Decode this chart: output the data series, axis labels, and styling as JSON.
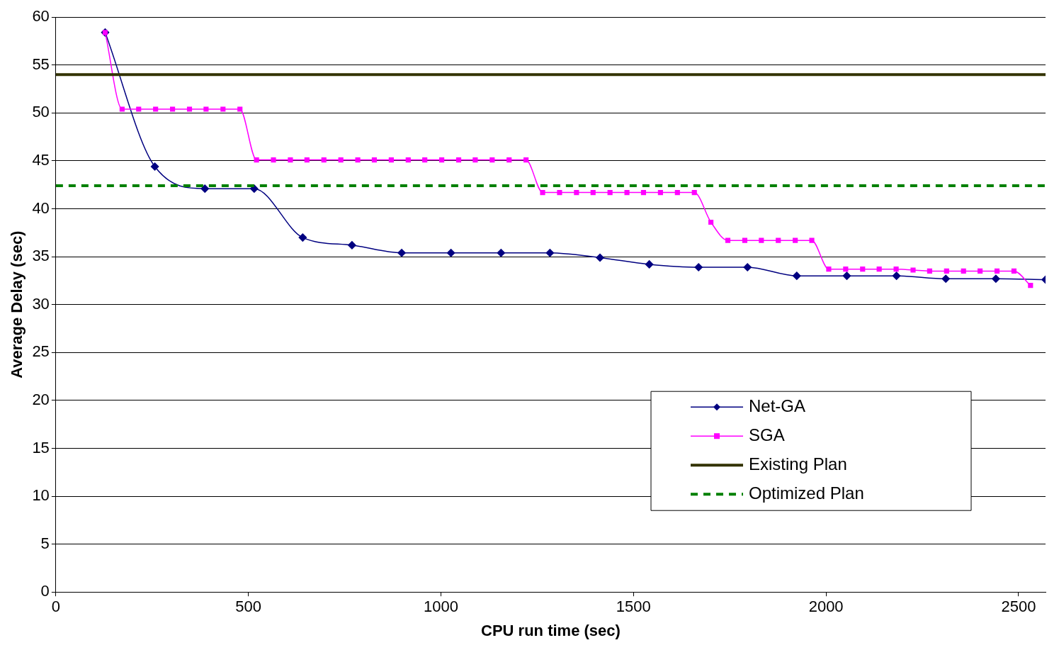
{
  "chart_data": {
    "type": "line",
    "xlabel": "CPU run time (sec)",
    "ylabel": "Average Delay (sec)",
    "xlim": [
      0,
      2570
    ],
    "xticks": [
      0,
      500,
      1000,
      1500,
      2000,
      2500
    ],
    "ylim": [
      0,
      60
    ],
    "yticks": [
      0,
      5,
      10,
      15,
      20,
      25,
      30,
      35,
      40,
      45,
      50,
      55,
      60
    ],
    "grid": "y",
    "legend": "bottom right",
    "series": [
      {
        "name": "Net-GA",
        "color": "#000080",
        "marker": "diamond",
        "line_style": "solid",
        "x": [
          128,
          257,
          387,
          515,
          641,
          769,
          898,
          1026,
          1156,
          1283,
          1413,
          1541,
          1669,
          1796,
          1924,
          2054,
          2183,
          2311,
          2441,
          2570
        ],
        "values": [
          58.4,
          44.4,
          42.1,
          42.1,
          37.0,
          36.2,
          35.4,
          35.4,
          35.4,
          35.4,
          34.9,
          34.2,
          33.9,
          33.9,
          33.0,
          33.0,
          33.0,
          32.7,
          32.7,
          32.6
        ]
      },
      {
        "name": "SGA",
        "color": "#ff00ff",
        "marker": "square",
        "line_style": "solid",
        "x": [
          128,
          172,
          215,
          259,
          303,
          347,
          390,
          434,
          478,
          521,
          565,
          609,
          652,
          696,
          740,
          784,
          827,
          871,
          915,
          958,
          1002,
          1046,
          1089,
          1133,
          1177,
          1221,
          1264,
          1308,
          1352,
          1395,
          1439,
          1483,
          1526,
          1570,
          1614,
          1658,
          1701,
          1745,
          1789,
          1832,
          1876,
          1920,
          1963,
          2007,
          2051,
          2095,
          2138,
          2182,
          2226,
          2269,
          2313,
          2357,
          2400,
          2444,
          2488,
          2531
        ],
        "values": [
          58.4,
          50.4,
          50.4,
          50.4,
          50.4,
          50.4,
          50.4,
          50.4,
          50.4,
          45.1,
          45.1,
          45.1,
          45.1,
          45.1,
          45.1,
          45.1,
          45.1,
          45.1,
          45.1,
          45.1,
          45.1,
          45.1,
          45.1,
          45.1,
          45.1,
          45.1,
          41.7,
          41.7,
          41.7,
          41.7,
          41.7,
          41.7,
          41.7,
          41.7,
          41.7,
          41.7,
          38.6,
          36.7,
          36.7,
          36.7,
          36.7,
          36.7,
          36.7,
          33.7,
          33.7,
          33.7,
          33.7,
          33.7,
          33.6,
          33.5,
          33.5,
          33.5,
          33.5,
          33.5,
          33.5,
          32.0
        ]
      },
      {
        "name": "Existing Plan",
        "color": "#333300",
        "marker": "none",
        "line_style": "solid",
        "x": [
          0,
          2570
        ],
        "values": [
          54,
          54
        ]
      },
      {
        "name": "Optimized Plan",
        "color": "#008000",
        "marker": "none",
        "line_style": "dashed",
        "x": [
          0,
          2570
        ],
        "values": [
          42.4,
          42.4
        ]
      }
    ]
  }
}
